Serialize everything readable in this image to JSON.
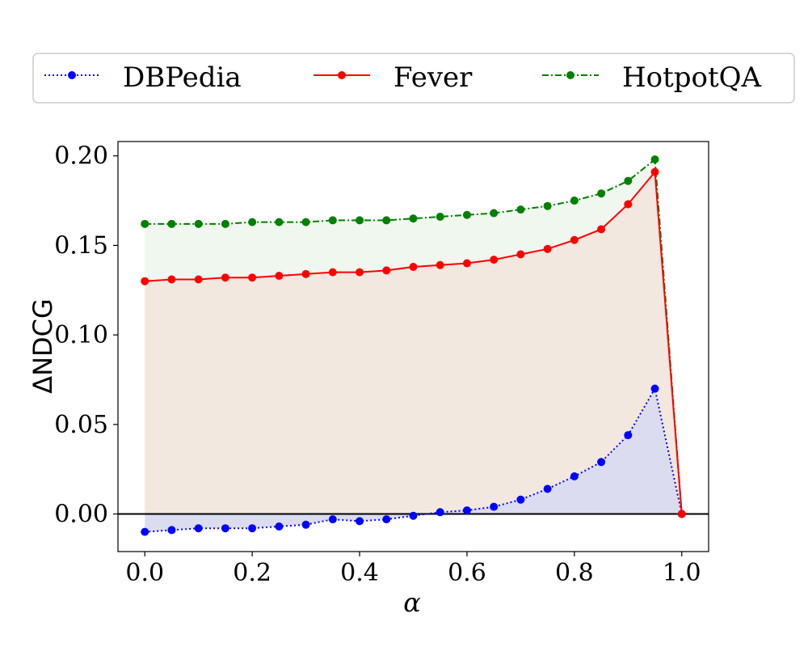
{
  "chart_data": {
    "type": "line",
    "xlabel": "α",
    "ylabel": "ΔNDCG",
    "xlim": [
      -0.05,
      1.05
    ],
    "ylim": [
      -0.021,
      0.208
    ],
    "xticks": [
      "0.0",
      "0.2",
      "0.4",
      "0.6",
      "0.8",
      "1.0"
    ],
    "yticks": [
      "0.00",
      "0.05",
      "0.10",
      "0.15",
      "0.20"
    ],
    "x": [
      0.0,
      0.05,
      0.1,
      0.15,
      0.2,
      0.25,
      0.3,
      0.35,
      0.4,
      0.45,
      0.5,
      0.55,
      0.6,
      0.65,
      0.7,
      0.75,
      0.8,
      0.85,
      0.9,
      0.95,
      1.0
    ],
    "legend_position": "top, outside plot, three columns",
    "zero_line": true,
    "series": [
      {
        "name": "DBPedia",
        "color": "#0000ff",
        "linestyle": "dotted",
        "fill": "#dcdcf0",
        "values": [
          -0.01,
          -0.009,
          -0.008,
          -0.008,
          -0.008,
          -0.007,
          -0.006,
          -0.003,
          -0.004,
          -0.003,
          -0.001,
          0.001,
          0.002,
          0.004,
          0.008,
          0.014,
          0.021,
          0.029,
          0.044,
          0.07,
          0.0
        ]
      },
      {
        "name": "Fever",
        "color": "#ff0000",
        "linestyle": "solid",
        "fill": "#f2e8e0",
        "values": [
          0.13,
          0.131,
          0.131,
          0.132,
          0.132,
          0.133,
          0.134,
          0.135,
          0.135,
          0.136,
          0.138,
          0.139,
          0.14,
          0.142,
          0.145,
          0.148,
          0.153,
          0.159,
          0.173,
          0.191,
          0.0
        ]
      },
      {
        "name": "HotpotQA",
        "color": "#008000",
        "linestyle": "dashdot",
        "fill": "#eff7ef",
        "values": [
          0.162,
          0.162,
          0.162,
          0.162,
          0.163,
          0.163,
          0.163,
          0.164,
          0.164,
          0.164,
          0.165,
          0.166,
          0.167,
          0.168,
          0.17,
          0.172,
          0.175,
          0.179,
          0.186,
          0.198,
          0.0
        ]
      }
    ]
  }
}
